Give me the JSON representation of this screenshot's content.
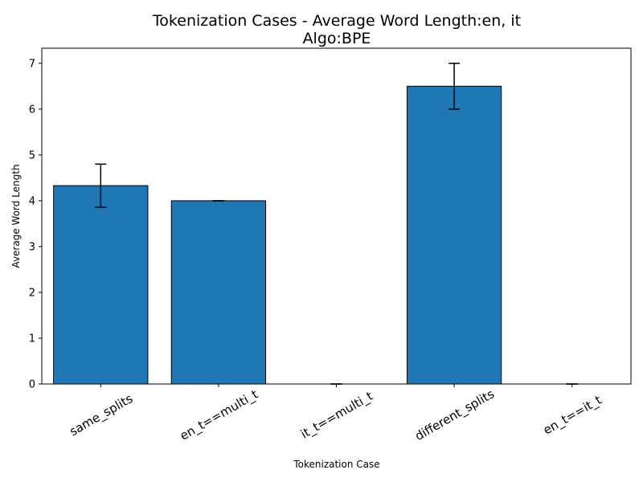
{
  "chart_data": {
    "type": "bar",
    "title": "Tokenization Cases - Average Word Length:en, it",
    "subtitle": "Algo:BPE",
    "xlabel": "Tokenization Case",
    "ylabel": "Average Word Length",
    "categories": [
      "same_splits",
      "en_t==multi_t",
      "it_t==multi_t",
      "different_splits",
      "en_t==it_t"
    ],
    "values": [
      4.33,
      4.0,
      0.0,
      6.5,
      0.0
    ],
    "errors": [
      0.47,
      0.0,
      0.0,
      0.5,
      0.0
    ],
    "ylim": [
      0,
      7.33
    ],
    "yticks": [
      0,
      1,
      2,
      3,
      4,
      5,
      6,
      7
    ],
    "grid": false,
    "bar_color": "#1f77b4",
    "edge_color": "#000000",
    "error_color": "#000000"
  }
}
